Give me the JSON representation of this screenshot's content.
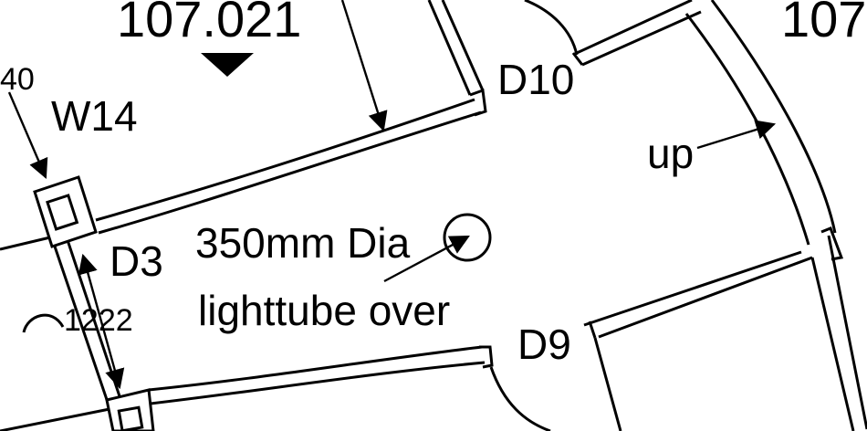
{
  "drawing": {
    "labels": {
      "level_left": "107.021",
      "level_right": "107.",
      "left_fragment": "40",
      "window": "W14",
      "door_d3": "D3",
      "door_d10": "D10",
      "door_d9": "D9",
      "stair_direction": "up",
      "lighttube_size": "350mm Dia",
      "lighttube_note": "lighttube over",
      "dimension": "1222"
    },
    "colors": {
      "ink": "#000000",
      "paper": "#ffffff"
    }
  }
}
